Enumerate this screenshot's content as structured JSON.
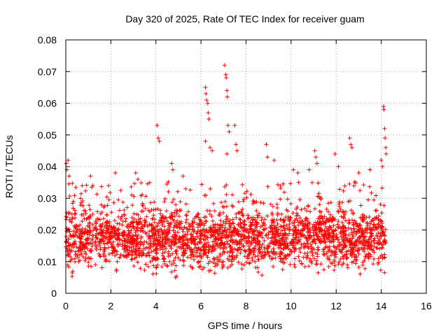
{
  "chart_data": {
    "type": "scatter",
    "title": "Day 320 of 2025, Rate Of TEC Index for receiver guam",
    "xlabel": "GPS time / hours",
    "ylabel": "ROTI / TECUs",
    "xlim": [
      0,
      16
    ],
    "ylim": [
      0,
      0.08
    ],
    "x_ticks": [
      0,
      2,
      4,
      6,
      8,
      10,
      12,
      14,
      16
    ],
    "y_ticks": [
      0,
      0.01,
      0.02,
      0.03,
      0.04,
      0.05,
      0.06,
      0.07,
      0.08
    ],
    "x_tick_labels": [
      "0",
      "2",
      "4",
      "6",
      "8",
      "10",
      "12",
      "14",
      "16"
    ],
    "y_tick_labels": [
      "0",
      "0.01",
      "0.02",
      "0.03",
      "0.04",
      "0.05",
      "0.06",
      "0.07",
      "0.08"
    ],
    "grid": true,
    "marker": "+",
    "marker_color": "#ff0000",
    "series": [
      {
        "name": "ROTI",
        "x_range": [
          0,
          14.2
        ],
        "typical_range": [
          0.004,
          0.03
        ],
        "outliers": [
          [
            0.02,
            0.041
          ],
          [
            0.05,
            0.039
          ],
          [
            0.1,
            0.042
          ],
          [
            0.15,
            0.037
          ],
          [
            1.1,
            0.037
          ],
          [
            1.2,
            0.034
          ],
          [
            1.9,
            0.034
          ],
          [
            2.2,
            0.038
          ],
          [
            3.1,
            0.038
          ],
          [
            3.2,
            0.036
          ],
          [
            4.05,
            0.053
          ],
          [
            4.1,
            0.049
          ],
          [
            4.15,
            0.048
          ],
          [
            4.7,
            0.041
          ],
          [
            4.75,
            0.039
          ],
          [
            5.2,
            0.037
          ],
          [
            6.2,
            0.065
          ],
          [
            6.22,
            0.063
          ],
          [
            6.25,
            0.061
          ],
          [
            6.3,
            0.06
          ],
          [
            6.32,
            0.057
          ],
          [
            6.35,
            0.055
          ],
          [
            6.2,
            0.048
          ],
          [
            6.4,
            0.046
          ],
          [
            6.5,
            0.045
          ],
          [
            7.05,
            0.072
          ],
          [
            7.1,
            0.069
          ],
          [
            7.12,
            0.068
          ],
          [
            7.15,
            0.064
          ],
          [
            7.17,
            0.062
          ],
          [
            7.2,
            0.053
          ],
          [
            7.25,
            0.051
          ],
          [
            7.5,
            0.053
          ],
          [
            7.55,
            0.047
          ],
          [
            7.6,
            0.045
          ],
          [
            7.15,
            0.044
          ],
          [
            8.9,
            0.047
          ],
          [
            8.95,
            0.043
          ],
          [
            9.25,
            0.042
          ],
          [
            10.1,
            0.039
          ],
          [
            10.3,
            0.038
          ],
          [
            10.8,
            0.039
          ],
          [
            11.05,
            0.045
          ],
          [
            11.1,
            0.043
          ],
          [
            11.15,
            0.041
          ],
          [
            11.95,
            0.044
          ],
          [
            12.1,
            0.04
          ],
          [
            12.6,
            0.049
          ],
          [
            12.65,
            0.047
          ],
          [
            12.7,
            0.046
          ],
          [
            13.0,
            0.038
          ],
          [
            13.5,
            0.039
          ],
          [
            14.1,
            0.059
          ],
          [
            14.12,
            0.058
          ],
          [
            14.15,
            0.052
          ],
          [
            14.17,
            0.049
          ],
          [
            14.2,
            0.046
          ],
          [
            14.22,
            0.044
          ],
          [
            14.0,
            0.042
          ],
          [
            14.05,
            0.04
          ]
        ]
      }
    ]
  }
}
